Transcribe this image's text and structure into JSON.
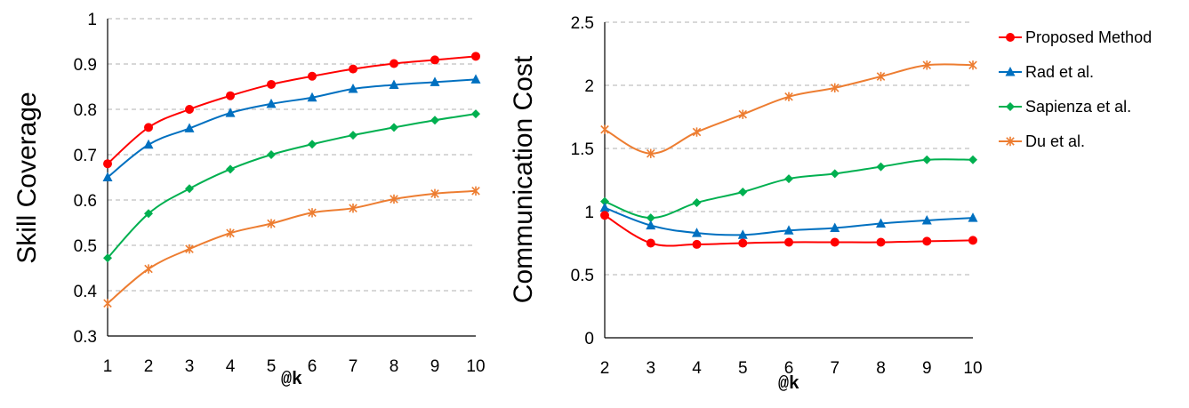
{
  "chart_data": [
    {
      "type": "line",
      "xlabel": "@k",
      "ylabel": "Skill Coverage",
      "x": [
        1,
        2,
        3,
        4,
        5,
        6,
        7,
        8,
        9,
        10
      ],
      "ylim": [
        0.3,
        1
      ],
      "yticks": [
        "0.3",
        "0.4",
        "0.5",
        "0.6",
        "0.7",
        "0.8",
        "0.9",
        "1"
      ],
      "grid": "horizontal dashed",
      "series": [
        {
          "name": "Proposed Method",
          "color": "#ff0000",
          "marker": "circle",
          "values": [
            0.68,
            0.76,
            0.8,
            0.83,
            0.855,
            0.873,
            0.889,
            0.901,
            0.909,
            0.917
          ]
        },
        {
          "name": "Rad et al.",
          "color": "#0070c0",
          "marker": "triangle",
          "values": [
            0.65,
            0.722,
            0.758,
            0.792,
            0.812,
            0.826,
            0.845,
            0.854,
            0.86,
            0.866
          ]
        },
        {
          "name": "Sapienza et al.",
          "color": "#00b050",
          "marker": "diamond",
          "values": [
            0.472,
            0.57,
            0.625,
            0.668,
            0.7,
            0.723,
            0.743,
            0.76,
            0.776,
            0.79
          ]
        },
        {
          "name": "Du et al.",
          "color": "#ed7d31",
          "marker": "asterisk",
          "values": [
            0.372,
            0.448,
            0.492,
            0.527,
            0.548,
            0.572,
            0.582,
            0.602,
            0.614,
            0.62
          ]
        }
      ]
    },
    {
      "type": "line",
      "xlabel": "@k",
      "ylabel": "Communication  Cost",
      "x": [
        2,
        3,
        4,
        5,
        6,
        7,
        8,
        9,
        10
      ],
      "ylim": [
        0,
        2.5
      ],
      "yticks": [
        "0",
        "0.5",
        "1",
        "1.5",
        "2",
        "2.5"
      ],
      "grid": "horizontal dashed",
      "legend": "right",
      "series": [
        {
          "name": "Proposed Method",
          "color": "#ff0000",
          "marker": "circle",
          "values": [
            0.97,
            0.75,
            0.74,
            0.75,
            0.757,
            0.757,
            0.757,
            0.765,
            0.772
          ]
        },
        {
          "name": "Rad et al.",
          "color": "#0070c0",
          "marker": "triangle",
          "values": [
            1.03,
            0.89,
            0.83,
            0.815,
            0.85,
            0.87,
            0.905,
            0.93,
            0.95
          ]
        },
        {
          "name": "Sapienza et al.",
          "color": "#00b050",
          "marker": "diamond",
          "values": [
            1.08,
            0.95,
            1.07,
            1.155,
            1.26,
            1.3,
            1.355,
            1.41,
            1.41
          ]
        },
        {
          "name": "Du et al.",
          "color": "#ed7d31",
          "marker": "asterisk",
          "values": [
            1.65,
            1.46,
            1.63,
            1.77,
            1.91,
            1.98,
            2.07,
            2.16,
            2.16
          ]
        }
      ]
    }
  ]
}
